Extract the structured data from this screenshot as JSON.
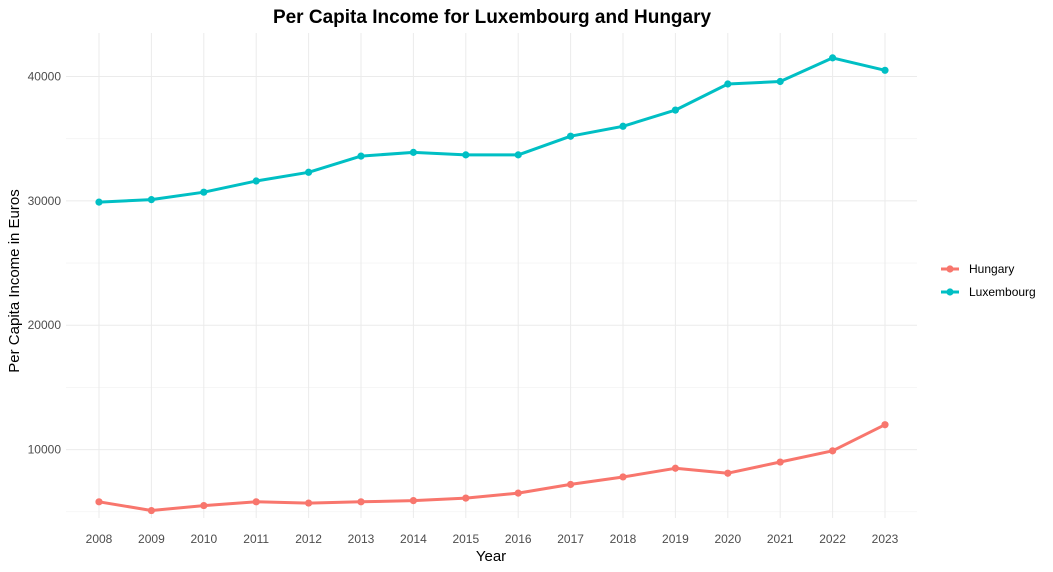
{
  "chart_data": {
    "type": "line",
    "title": "Per Capita Income for Luxembourg and Hungary",
    "xlabel": "Year",
    "ylabel": "Per Capita Income in Euros",
    "x": [
      "2008",
      "2009",
      "2010",
      "2011",
      "2012",
      "2013",
      "2014",
      "2015",
      "2016",
      "2017",
      "2018",
      "2019",
      "2020",
      "2021",
      "2022",
      "2023"
    ],
    "yticks": [
      10000,
      20000,
      30000,
      40000
    ],
    "ytick_labels": [
      "10000",
      "20000",
      "30000",
      "40000"
    ],
    "ylim": [
      4500,
      43500
    ],
    "grid": true,
    "legend_position": "right",
    "series": [
      {
        "name": "Hungary",
        "color": "#F8766D",
        "values": [
          5800,
          5100,
          5500,
          5800,
          5700,
          5800,
          5900,
          6100,
          6500,
          7200,
          7800,
          8500,
          8100,
          9000,
          9900,
          12000
        ]
      },
      {
        "name": "Luxembourg",
        "color": "#00BFC4",
        "values": [
          29900,
          30100,
          30700,
          31600,
          32300,
          33600,
          33900,
          33700,
          33700,
          35200,
          36000,
          37300,
          39400,
          39600,
          41500,
          40500
        ]
      }
    ]
  }
}
